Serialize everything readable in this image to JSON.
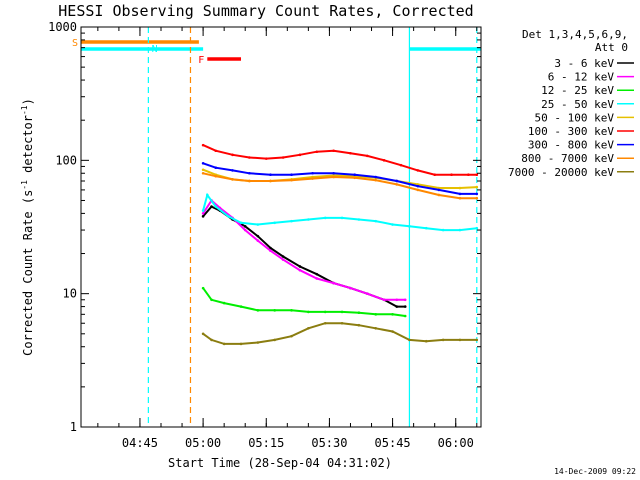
{
  "chart_data": {
    "type": "line",
    "title": "HESSI Observing Summary Count Rates, Corrected",
    "xlabel": "Start Time (28-Sep-04 04:31:02)",
    "ylabel_main": "Corrected Count Rate (s",
    "ylabel_sup1": "-1",
    "ylabel_mid": " detector",
    "ylabel_sup2": "-1",
    "ylabel_end": ")",
    "yscale": "log",
    "ylim": [
      1,
      1000
    ],
    "xlim_minutes": [
      0,
      95
    ],
    "y_tick_labels": [
      "1",
      "10",
      "100",
      "1000"
    ],
    "y_tick_values": [
      1,
      10,
      100,
      1000
    ],
    "x_tick_labels": [
      "04:45",
      "05:00",
      "05:15",
      "05:30",
      "05:45",
      "06:00"
    ],
    "x_tick_minutes": [
      14,
      29,
      44,
      59,
      74,
      89
    ],
    "legend": {
      "placement": "right",
      "header1": "Det 1,3,4,5,6,9,",
      "header2": "Att 0",
      "entries": [
        {
          "label": "3 - 6 keV",
          "color": "#000000"
        },
        {
          "label": "6 - 12 keV",
          "color": "#ff00ff"
        },
        {
          "label": "12 - 25 keV",
          "color": "#00ee00"
        },
        {
          "label": "25 - 50 keV",
          "color": "#00ffff"
        },
        {
          "label": "50 - 100 keV",
          "color": "#e6c000"
        },
        {
          "label": "100 - 300 keV",
          "color": "#ff0000"
        },
        {
          "label": "300 - 800 keV",
          "color": "#0000ff"
        },
        {
          "label": "800 - 7000 keV",
          "color": "#ff8800"
        },
        {
          "label": "7000 - 20000 keV",
          "color": "#8b7d10"
        }
      ]
    },
    "series": [
      {
        "name": "3 - 6 keV",
        "x": [
          29,
          31,
          33,
          36,
          39,
          42,
          45,
          48,
          52,
          56,
          60,
          64,
          68,
          72,
          75,
          77
        ],
        "y": [
          38,
          45,
          42,
          36,
          32,
          27,
          22,
          19,
          16,
          14,
          12,
          11,
          10,
          9,
          8,
          8
        ]
      },
      {
        "name": "6 - 12 keV",
        "x": [
          29,
          31,
          33,
          36,
          39,
          42,
          45,
          48,
          52,
          56,
          60,
          64,
          68,
          72,
          75,
          77
        ],
        "y": [
          40,
          50,
          44,
          37,
          30,
          25,
          21,
          18,
          15,
          13,
          12,
          11,
          10,
          9,
          9,
          9
        ]
      },
      {
        "name": "12 - 25 keV",
        "x": [
          29,
          31,
          34,
          38,
          42,
          46,
          50,
          54,
          58,
          62,
          66,
          70,
          74,
          77
        ],
        "y": [
          11,
          9,
          8.5,
          8,
          7.5,
          7.5,
          7.5,
          7.3,
          7.3,
          7.3,
          7.2,
          7,
          7,
          6.8
        ]
      },
      {
        "name": "25 - 50 keV",
        "x": [
          29,
          30,
          32,
          35,
          38,
          42,
          46,
          50,
          54,
          58,
          62,
          66,
          70,
          74,
          78,
          82,
          86,
          90,
          94
        ],
        "y": [
          42,
          55,
          45,
          38,
          34,
          33,
          34,
          35,
          36,
          37,
          37,
          36,
          35,
          33,
          32,
          31,
          30,
          30,
          31
        ]
      },
      {
        "name": "50 - 100 keV",
        "x": [
          29,
          32,
          36,
          40,
          45,
          50,
          55,
          60,
          65,
          70,
          75,
          80,
          85,
          90,
          94
        ],
        "y": [
          85,
          78,
          72,
          70,
          70,
          72,
          75,
          77,
          76,
          74,
          70,
          66,
          62,
          62,
          63
        ]
      },
      {
        "name": "100 - 300 keV",
        "x": [
          29,
          32,
          36,
          40,
          44,
          48,
          52,
          56,
          60,
          64,
          68,
          72,
          76,
          80,
          84,
          88,
          92,
          94
        ],
        "y": [
          130,
          118,
          110,
          105,
          103,
          105,
          110,
          116,
          118,
          113,
          108,
          100,
          92,
          84,
          78,
          78,
          78,
          78
        ]
      },
      {
        "name": "300 - 800 keV",
        "x": [
          29,
          32,
          36,
          40,
          45,
          50,
          55,
          60,
          65,
          70,
          75,
          80,
          85,
          90,
          94
        ],
        "y": [
          95,
          88,
          84,
          80,
          78,
          78,
          80,
          80,
          78,
          75,
          70,
          64,
          60,
          56,
          56
        ]
      },
      {
        "name": "800 - 7000 keV",
        "x": [
          29,
          32,
          36,
          40,
          45,
          50,
          55,
          60,
          65,
          70,
          75,
          80,
          85,
          90,
          94
        ],
        "y": [
          80,
          76,
          72,
          70,
          70,
          71,
          73,
          75,
          74,
          71,
          66,
          60,
          55,
          52,
          52
        ]
      },
      {
        "name": "7000 - 20000 keV",
        "x": [
          29,
          31,
          34,
          38,
          42,
          46,
          50,
          54,
          58,
          62,
          66,
          70,
          74,
          78,
          82,
          86,
          90,
          94
        ],
        "y": [
          5,
          4.5,
          4.2,
          4.2,
          4.3,
          4.5,
          4.8,
          5.5,
          6,
          6,
          5.8,
          5.5,
          5.2,
          4.5,
          4.4,
          4.5,
          4.5,
          4.5
        ]
      }
    ],
    "flag_markers": [
      {
        "label": "S",
        "color": "#ff8800",
        "x_start": 0,
        "x_end": 28
      },
      {
        "label": "N",
        "color": "#00ffff",
        "x_start": 0,
        "x_end": 29
      },
      {
        "label": "F",
        "color": "#ff0000",
        "x_start": 30,
        "x_end": 38
      }
    ],
    "flag_lines": [
      {
        "color": "#00ffff",
        "x_start": 78,
        "x_end": 95
      }
    ],
    "vertical_lines": [
      {
        "x": 16,
        "color": "#00ffff",
        "style": "dashed"
      },
      {
        "x": 26,
        "color": "#ff8800",
        "style": "dashed"
      },
      {
        "x": 78,
        "color": "#00ffff",
        "style": "solid"
      },
      {
        "x": 94,
        "color": "#00ffff",
        "style": "dashed"
      }
    ]
  },
  "footer_timestamp": "14-Dec-2009 09:22"
}
